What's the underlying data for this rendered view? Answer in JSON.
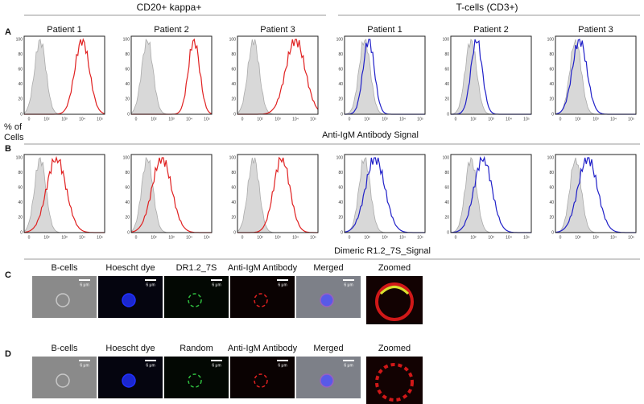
{
  "headers": {
    "left": "CD20+ kappa+",
    "right": "T-cells (CD3+)"
  },
  "panel_labels": [
    "A",
    "B",
    "C",
    "D"
  ],
  "patients": [
    "Patient 1",
    "Patient 2",
    "Patient 3"
  ],
  "y_axis_label": [
    "% of",
    "Cells"
  ],
  "row_a_xlabel": "Anti-IgM Antibody Signal",
  "row_b_xlabel": "Dimeric  R1.2_7S_Signal",
  "hist_y_ticks": [
    "0",
    "20",
    "40",
    "60",
    "80",
    "100"
  ],
  "hist_x_ticks": [
    "0",
    "10²",
    "10³",
    "10⁴",
    "10⁵"
  ],
  "row_c": {
    "labels": [
      "B-cells",
      "Hoescht dye",
      "DR1.2_7S",
      "Anti-IgM Antibody",
      "Merged"
    ],
    "zoom_label": "Zoomed"
  },
  "row_d": {
    "labels": [
      "B-cells",
      "Hoescht dye",
      "Random",
      "Anti-IgM Antibody",
      "Merged"
    ],
    "zoom_label": "Zoomed"
  },
  "scale_bar": "6 μm"
}
